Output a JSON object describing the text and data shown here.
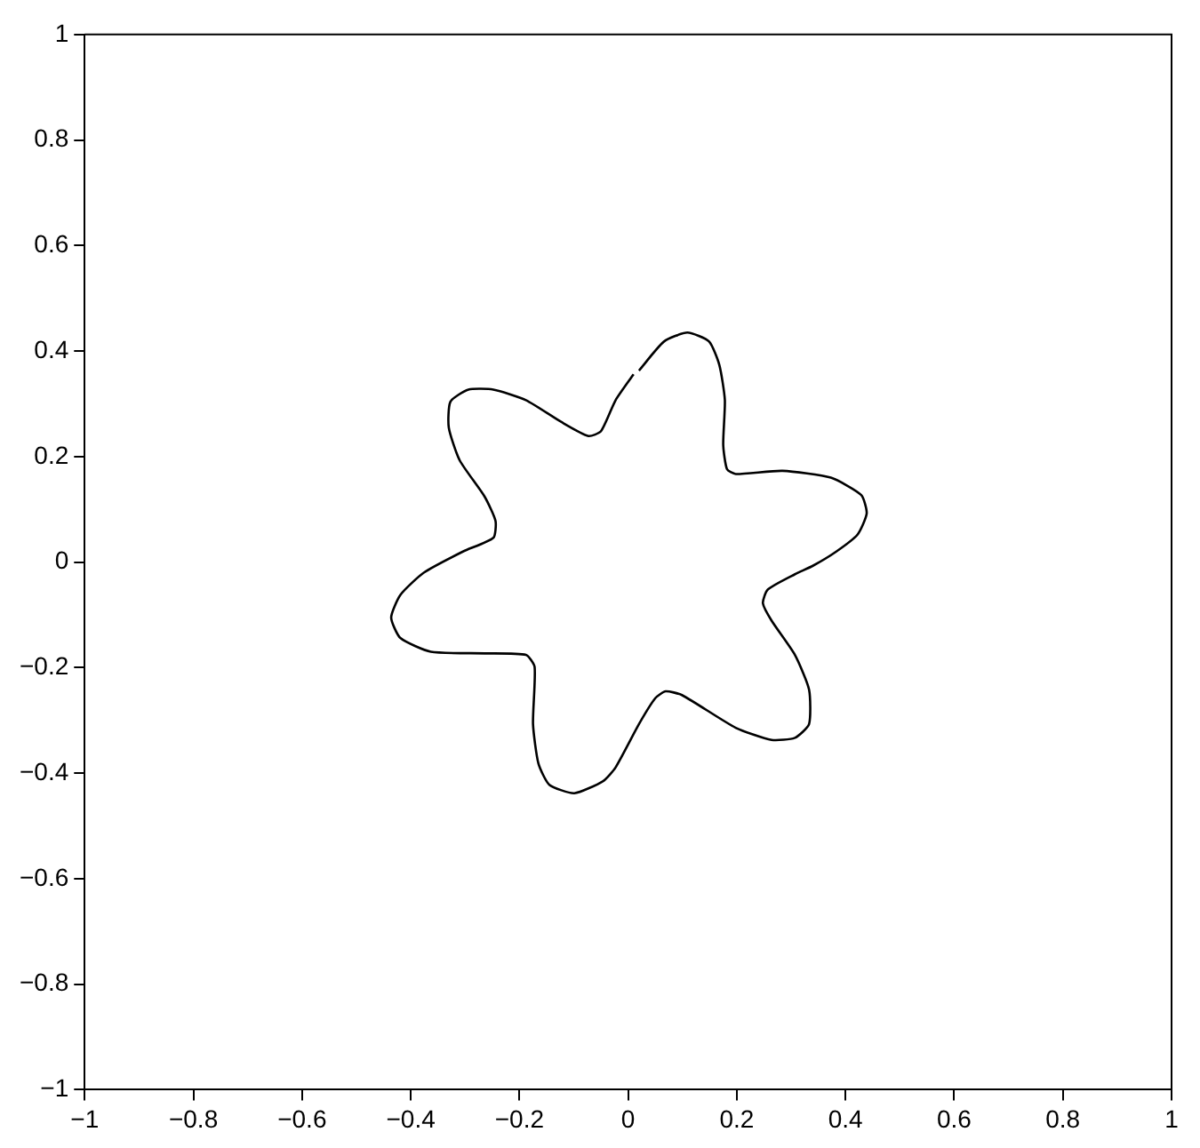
{
  "chart_data": {
    "type": "line",
    "xlim": [
      -1,
      1
    ],
    "ylim": [
      -1,
      1
    ],
    "xticks": [
      {
        "value": -1,
        "label": "−1"
      },
      {
        "value": -0.8,
        "label": "−0.8"
      },
      {
        "value": -0.6,
        "label": "−0.6"
      },
      {
        "value": -0.4,
        "label": "−0.4"
      },
      {
        "value": -0.2,
        "label": "−0.2"
      },
      0,
      0.2,
      0.4,
      0.6,
      0.8,
      1
    ],
    "yticks": [
      {
        "value": -1,
        "label": "−1"
      },
      {
        "value": -0.8,
        "label": "−0.8"
      },
      {
        "value": -0.6,
        "label": "−0.6"
      },
      {
        "value": -0.4,
        "label": "−0.4"
      },
      {
        "value": -0.2,
        "label": "−0.2"
      },
      0,
      0.2,
      0.4,
      0.6,
      0.8,
      1
    ],
    "grid": false,
    "legend": false,
    "marker": "none",
    "line_style": "solid",
    "series": [
      {
        "color": "#000000",
        "x": [
          0.02,
          0.066,
          0.109,
          0.149,
          0.168,
          0.178,
          0.175,
          0.182,
          0.198,
          0.284,
          0.373,
          0.429,
          0.439,
          0.422,
          0.383,
          0.34,
          0.307,
          0.257,
          0.248,
          0.264,
          0.307,
          0.333,
          0.333,
          0.307,
          0.264,
          0.198,
          0.099,
          0.069,
          0.05,
          0.02,
          -0.023,
          -0.046,
          -0.099,
          -0.145,
          -0.165,
          -0.175,
          -0.172,
          -0.188,
          -0.264,
          -0.363,
          -0.419,
          -0.436,
          -0.419,
          -0.376,
          -0.304,
          -0.248,
          -0.244,
          -0.264,
          -0.31,
          -0.33,
          -0.327,
          -0.294,
          -0.248,
          -0.188,
          -0.122,
          -0.073,
          -0.05,
          -0.023,
          0.01
        ],
        "values": [
          0.363,
          0.418,
          0.435,
          0.418,
          0.373,
          0.307,
          0.222,
          0.176,
          0.167,
          0.173,
          0.16,
          0.127,
          0.092,
          0.052,
          0.02,
          -0.007,
          -0.023,
          -0.052,
          -0.078,
          -0.111,
          -0.176,
          -0.242,
          -0.307,
          -0.333,
          -0.337,
          -0.314,
          -0.252,
          -0.245,
          -0.258,
          -0.307,
          -0.389,
          -0.415,
          -0.438,
          -0.422,
          -0.382,
          -0.307,
          -0.199,
          -0.176,
          -0.173,
          -0.17,
          -0.144,
          -0.105,
          -0.062,
          -0.02,
          0.02,
          0.046,
          0.078,
          0.124,
          0.193,
          0.255,
          0.304,
          0.327,
          0.327,
          0.307,
          0.265,
          0.239,
          0.248,
          0.307,
          0.356
        ]
      }
    ]
  }
}
